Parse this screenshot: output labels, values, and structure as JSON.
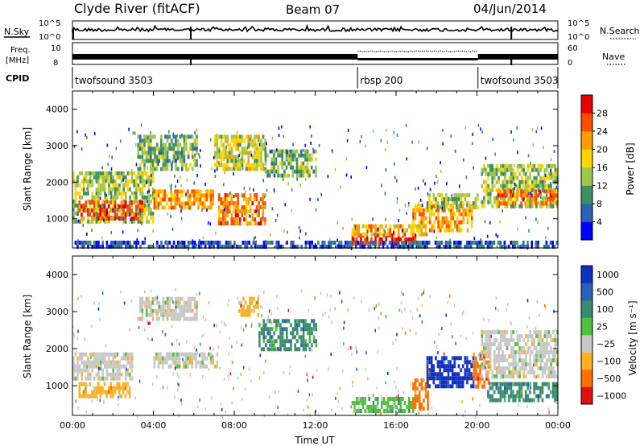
{
  "header": {
    "station": "Clyde River (fitACF)",
    "beam": "Beam 07",
    "date": "04/Jun/2014"
  },
  "panels": {
    "nsky": {
      "left_label": "N.Sky",
      "left_ticks": [
        "10^5",
        "10^0"
      ],
      "right_ticks": [
        "10^5",
        "10^0"
      ],
      "right_label": "N.Search"
    },
    "freq": {
      "left_label_1": "Freq.",
      "left_label_2": "[MHz]",
      "left_ticks": [
        "10",
        "8"
      ],
      "right_ticks": [
        "60",
        "0"
      ],
      "right_label": "Nave"
    },
    "cpid": {
      "label": "CPID",
      "segments": [
        {
          "name": "twofsound 3503",
          "start_h": 0.0
        },
        {
          "name": "rbsp 200",
          "start_h": 14.1
        },
        {
          "name": "twofsound 3503",
          "start_h": 20.05
        }
      ]
    }
  },
  "chart_data": [
    {
      "type": "heatmap",
      "title": "",
      "xlabel": "",
      "ylabel": "Slant Range [km]",
      "x_unit": "hours UT",
      "xlim": [
        0,
        24
      ],
      "ylim": [
        200,
        4500
      ],
      "x_ticks": [
        "00:00",
        "04:00",
        "08:00",
        "12:00",
        "16:00",
        "20:00",
        "00:00"
      ],
      "y_ticks": [
        1000,
        2000,
        3000,
        4000
      ],
      "colorbar": {
        "label": "Power [dB]",
        "range": [
          0,
          32
        ],
        "ticks": [
          4,
          8,
          12,
          16,
          20,
          24,
          28
        ],
        "colors": [
          "#0000ff",
          "#2d5fb4",
          "#3e8f60",
          "#9ec64a",
          "#ffd400",
          "#ff9c00",
          "#ff4d00",
          "#e60000"
        ]
      },
      "regions": [
        {
          "x": [
            0.0,
            4.0
          ],
          "y": [
            900,
            2300
          ],
          "level": 14
        },
        {
          "x": [
            0.3,
            3.5
          ],
          "y": [
            1000,
            1500
          ],
          "level": 26
        },
        {
          "x": [
            3.2,
            6.2
          ],
          "y": [
            2400,
            3300
          ],
          "level": 12
        },
        {
          "x": [
            4.0,
            7.0
          ],
          "y": [
            1300,
            1800
          ],
          "level": 22
        },
        {
          "x": [
            7.0,
            9.5
          ],
          "y": [
            2400,
            3300
          ],
          "level": 16
        },
        {
          "x": [
            7.2,
            9.5
          ],
          "y": [
            900,
            1700
          ],
          "level": 24
        },
        {
          "x": [
            9.5,
            12.0
          ],
          "y": [
            2200,
            2900
          ],
          "level": 12
        },
        {
          "x": [
            13.8,
            17.0
          ],
          "y": [
            300,
            600
          ],
          "level": 30
        },
        {
          "x": [
            13.8,
            17.5
          ],
          "y": [
            600,
            850
          ],
          "level": 20
        },
        {
          "x": [
            16.8,
            19.8
          ],
          "y": [
            700,
            1400
          ],
          "level": 22
        },
        {
          "x": [
            17.5,
            20.0
          ],
          "y": [
            1300,
            1700
          ],
          "level": 14
        },
        {
          "x": [
            20.2,
            24.0
          ],
          "y": [
            1300,
            2500
          ],
          "level": 14
        },
        {
          "x": [
            21.0,
            24.0
          ],
          "y": [
            1400,
            1800
          ],
          "level": 24
        },
        {
          "x": [
            0.0,
            24.0
          ],
          "y": [
            250,
            400
          ],
          "level": 6
        }
      ]
    },
    {
      "type": "heatmap",
      "title": "",
      "xlabel": "Time UT",
      "ylabel": "Slant Range [km]",
      "x_unit": "hours UT",
      "xlim": [
        0,
        24
      ],
      "ylim": [
        200,
        4500
      ],
      "x_ticks": [
        "00:00",
        "04:00",
        "08:00",
        "12:00",
        "16:00",
        "20:00",
        "00:00"
      ],
      "y_ticks": [
        1000,
        2000,
        3000,
        4000
      ],
      "colorbar": {
        "label": "Velocity [m s⁻¹]",
        "ticks": [
          "1000",
          "500",
          "100",
          "25",
          "−25",
          "−100",
          "−500",
          "−1000"
        ],
        "colors": [
          "#1030c0",
          "#2a60b8",
          "#3a8a70",
          "#4fc040",
          "#c8c8c8",
          "#ffb020",
          "#ff7000",
          "#e01010"
        ]
      },
      "regions": [
        {
          "x": [
            0.0,
            3.0
          ],
          "y": [
            1200,
            1900
          ],
          "level": 4
        },
        {
          "x": [
            0.3,
            2.8
          ],
          "y": [
            700,
            1100
          ],
          "level": 5
        },
        {
          "x": [
            3.2,
            6.2
          ],
          "y": [
            2800,
            3400
          ],
          "level": 4
        },
        {
          "x": [
            4.0,
            7.2
          ],
          "y": [
            1500,
            1900
          ],
          "level": 4
        },
        {
          "x": [
            8.2,
            9.2
          ],
          "y": [
            2900,
            3400
          ],
          "level": 5
        },
        {
          "x": [
            9.2,
            12.0
          ],
          "y": [
            2000,
            2800
          ],
          "level": 2
        },
        {
          "x": [
            13.8,
            17.0
          ],
          "y": [
            300,
            700
          ],
          "level": 3
        },
        {
          "x": [
            16.8,
            17.6
          ],
          "y": [
            400,
            1200
          ],
          "level": 6
        },
        {
          "x": [
            17.5,
            19.8
          ],
          "y": [
            1000,
            1800
          ],
          "level": 0
        },
        {
          "x": [
            19.8,
            20.6
          ],
          "y": [
            1000,
            1900
          ],
          "level": 6
        },
        {
          "x": [
            20.2,
            24.0
          ],
          "y": [
            1300,
            2500
          ],
          "level": 4
        },
        {
          "x": [
            20.5,
            24.0
          ],
          "y": [
            600,
            1100
          ],
          "level": 2
        }
      ]
    }
  ]
}
